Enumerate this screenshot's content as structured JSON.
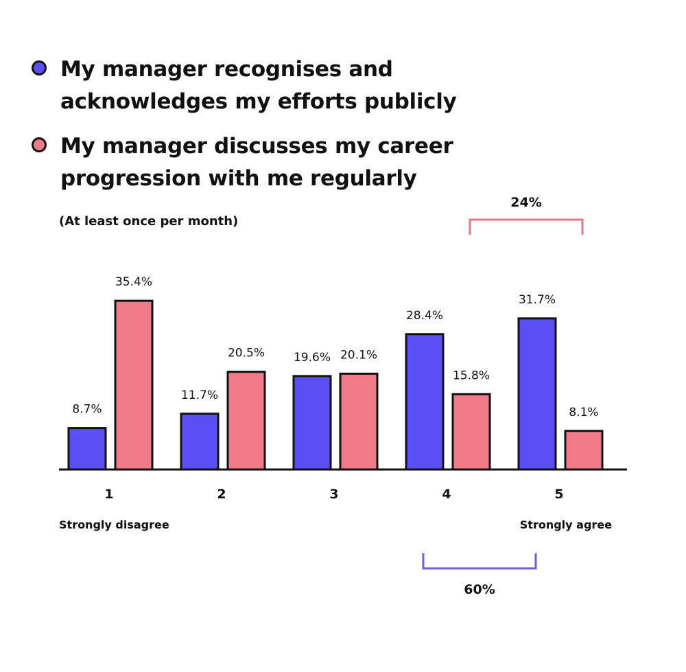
{
  "legend": [
    {
      "lines": [
        "My manager recognises and",
        "acknowledges my efforts publicly"
      ],
      "color": "#5a4ff5"
    },
    {
      "lines": [
        "My manager discusses my career",
        "progression with me regularly"
      ],
      "color": "#f07a88"
    }
  ],
  "subnote": "(At least once per month)",
  "chart_data": {
    "type": "bar",
    "categories": [
      "1",
      "2",
      "3",
      "4",
      "5"
    ],
    "series": [
      {
        "values": [
          8.7,
          11.7,
          19.6,
          28.4,
          31.7
        ],
        "labels": [
          "8.7%",
          "11.7%",
          "19.6%",
          "28.4%",
          "31.7%"
        ],
        "color": "#5a4ff5"
      },
      {
        "values": [
          35.4,
          20.5,
          20.1,
          15.8,
          8.1
        ],
        "labels": [
          "35.4%",
          "20.5%",
          "20.1%",
          "15.8%",
          "8.1%"
        ],
        "color": "#f07a88"
      }
    ],
    "xlabel_left": "Strongly disagree",
    "xlabel_right": "Strongly agree",
    "ylim": [
      0,
      36
    ],
    "annotations": [
      {
        "text": "24%",
        "series": 1,
        "from": 3,
        "to": 4,
        "position": "top",
        "color": "#e07a86"
      },
      {
        "text": "60%",
        "series": 0,
        "from": 3,
        "to": 4,
        "position": "bottom",
        "color": "#6b62d8"
      }
    ]
  }
}
